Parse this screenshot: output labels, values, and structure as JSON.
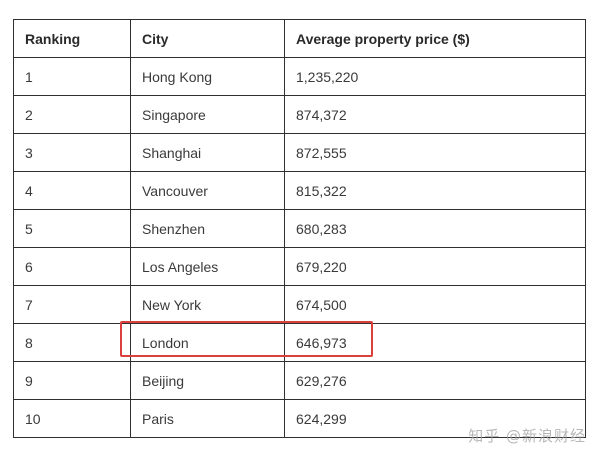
{
  "table": {
    "headers": [
      "Ranking",
      "City",
      "Average property price ($)"
    ],
    "rows": [
      [
        "1",
        "Hong Kong",
        "1,235,220"
      ],
      [
        "2",
        "Singapore",
        "874,372"
      ],
      [
        "3",
        "Shanghai",
        "872,555"
      ],
      [
        "4",
        "Vancouver",
        "815,322"
      ],
      [
        "5",
        "Shenzhen",
        "680,283"
      ],
      [
        "6",
        "Los Angeles",
        "679,220"
      ],
      [
        "7",
        "New York",
        "674,500"
      ],
      [
        "8",
        "London",
        "646,973"
      ],
      [
        "9",
        "Beijing",
        "629,276"
      ],
      [
        "10",
        "Paris",
        "624,299"
      ]
    ],
    "highlight_color": "#d9403e"
  },
  "watermark": {
    "text": "知乎 @新浪财经"
  }
}
